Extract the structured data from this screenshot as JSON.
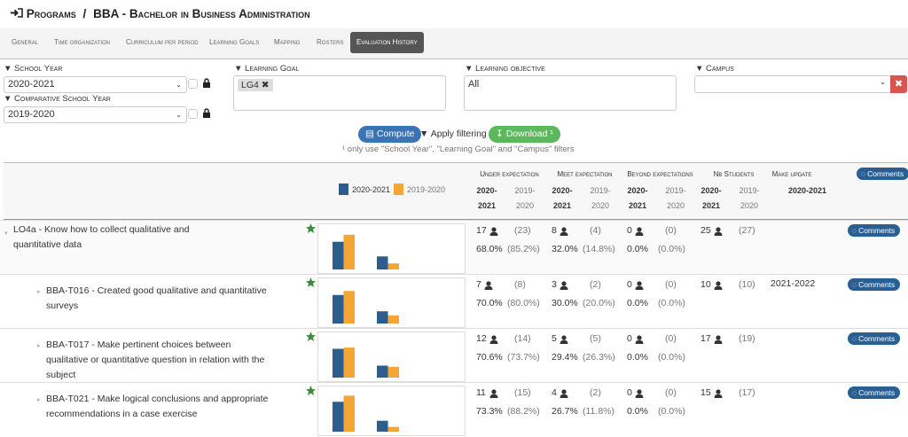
{
  "header": {
    "breadcrumb": "Programs",
    "separator": "/",
    "title": "BBA - Bachelor in Business Administration"
  },
  "tabs": {
    "items": [
      "General",
      "Time organization",
      "Curriculum per period",
      "Learning Goals",
      "Mapping",
      "Rosters",
      "Evaluation History"
    ],
    "active": 6
  },
  "filters": {
    "school_year": {
      "label": "School Year",
      "value": "2020-2021"
    },
    "comparative_year": {
      "label": "Comparative School Year",
      "value": "2019-2020"
    },
    "learning_goal": {
      "label": "Learning Goal",
      "tag": "LG4"
    },
    "learning_objective": {
      "label": "Learning objective",
      "value": "All"
    },
    "campus": {
      "label": "Campus"
    }
  },
  "actions": {
    "compute": "Compute",
    "apply": "Apply filtering",
    "download": "Download ¹",
    "note": "¹ only use \"School Year\", \"Learning Goal\" and \"Campus\" filters"
  },
  "table": {
    "legend": [
      {
        "name": "2020-2021",
        "color": "#2c5d8c"
      },
      {
        "name": "2019-2020",
        "color": "#f3a535"
      }
    ],
    "columns": [
      "Under expectation",
      "Meet expectation",
      "Beyond expectations",
      "Nb Students",
      "Make update"
    ],
    "years": [
      "2020-2021",
      "2019-2020"
    ],
    "comments": "Comments",
    "ylim": [
      0,
      100
    ],
    "rows": [
      {
        "title": "LO4a - Know how to collect qualitative and quantitative data",
        "metrics": [
          {
            "count": 17,
            "count_prev": "(23)",
            "pct": 68.0,
            "pct_label": "68.0%",
            "pct_prev": 85.2,
            "pct_prev_label": "(85.2%)"
          },
          {
            "count": 8,
            "count_prev": "(4)",
            "pct": 32.0,
            "pct_label": "32.0%",
            "pct_prev": 14.8,
            "pct_prev_label": "(14.8%)"
          },
          {
            "count": 0,
            "count_prev": "(0)",
            "pct": 0.0,
            "pct_label": "0.0%",
            "pct_prev": 0.0,
            "pct_prev_label": "(0.0%)"
          }
        ],
        "students": 25,
        "students_prev": "(27)"
      },
      {
        "title": "BBA-T016 - Created good qualitative and quantitative surveys",
        "metrics": [
          {
            "count": 7,
            "count_prev": "(8)",
            "pct": 70.0,
            "pct_label": "70.0%",
            "pct_prev": 80.0,
            "pct_prev_label": "(80.0%)"
          },
          {
            "count": 3,
            "count_prev": "(2)",
            "pct": 30.0,
            "pct_label": "30.0%",
            "pct_prev": 20.0,
            "pct_prev_label": "(20.0%)"
          },
          {
            "count": 0,
            "count_prev": "(0)",
            "pct": 0.0,
            "pct_label": "0.0%",
            "pct_prev": 0.0,
            "pct_prev_label": "(0.0%)"
          }
        ],
        "students": 10,
        "students_prev": "(10)",
        "update": "2021-2022"
      },
      {
        "title": "BBA-T017 - Make pertinent choices between qualitative or quantitative question in relation with the subject",
        "metrics": [
          {
            "count": 12,
            "count_prev": "(14)",
            "pct": 70.6,
            "pct_label": "70.6%",
            "pct_prev": 73.7,
            "pct_prev_label": "(73.7%)"
          },
          {
            "count": 5,
            "count_prev": "(5)",
            "pct": 29.4,
            "pct_label": "29.4%",
            "pct_prev": 26.3,
            "pct_prev_label": "(26.3%)"
          },
          {
            "count": 0,
            "count_prev": "(0)",
            "pct": 0.0,
            "pct_label": "0.0%",
            "pct_prev": 0.0,
            "pct_prev_label": "(0.0%)"
          }
        ],
        "students": 17,
        "students_prev": "(19)"
      },
      {
        "title": "BBA-T021 - Make logical conclusions and appropriate recommendations in a case exercise",
        "metrics": [
          {
            "count": 11,
            "count_prev": "(15)",
            "pct": 73.3,
            "pct_label": "73.3%",
            "pct_prev": 88.2,
            "pct_prev_label": "(88.2%)"
          },
          {
            "count": 4,
            "count_prev": "(2)",
            "pct": 26.7,
            "pct_label": "26.7%",
            "pct_prev": 11.8,
            "pct_prev_label": "(11.8%)"
          },
          {
            "count": 0,
            "count_prev": "(0)",
            "pct": 0.0,
            "pct_label": "0.0%",
            "pct_prev": 0.0,
            "pct_prev_label": "(0.0%)"
          }
        ],
        "students": 15,
        "students_prev": "(17)"
      }
    ]
  }
}
